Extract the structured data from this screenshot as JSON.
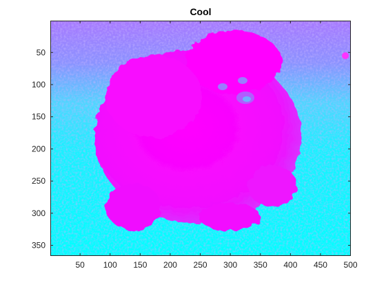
{
  "figure": {
    "title": "Cool",
    "colormap": "cool",
    "colormap_stops": [
      "#00ffff",
      "#ff00ff"
    ],
    "frame_color": "#262626"
  },
  "image": {
    "subject": "pomeranian-dog-icon",
    "x_ticks": [
      50,
      100,
      150,
      200,
      250,
      300,
      350,
      400,
      450,
      500
    ],
    "y_ticks": [
      50,
      100,
      150,
      200,
      250,
      300,
      350
    ],
    "x_range": [
      0.5,
      500.5
    ],
    "y_range": [
      0.5,
      366.5
    ]
  }
}
